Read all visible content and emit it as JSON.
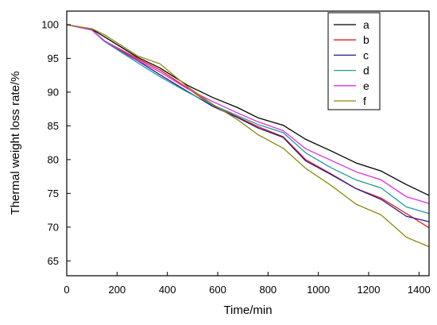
{
  "chart_data": {
    "type": "line",
    "xlabel": "Time/min",
    "ylabel": "Thermal weight loss rate/%",
    "xlim": [
      0,
      1440
    ],
    "ylim": [
      62.8,
      102
    ],
    "xticks": [
      0,
      200,
      400,
      600,
      800,
      1000,
      1200,
      1400
    ],
    "yticks": [
      65,
      70,
      75,
      80,
      85,
      90,
      95,
      100
    ],
    "grid": false,
    "legend": "top-right",
    "x": [
      0,
      100,
      150,
      280,
      370,
      480,
      580,
      680,
      760,
      860,
      950,
      1050,
      1150,
      1250,
      1350,
      1440
    ],
    "series": [
      {
        "name": "a",
        "color": "#000000",
        "values": [
          100,
          99.3,
          98.2,
          95.2,
          93.6,
          91.0,
          89.2,
          87.7,
          86.2,
          85.1,
          83.0,
          81.3,
          79.5,
          78.3,
          76.3,
          74.7
        ]
      },
      {
        "name": "b",
        "color": "#e31e1e",
        "values": [
          100,
          99.2,
          97.6,
          95.0,
          93.3,
          90.6,
          88.0,
          86.3,
          84.9,
          83.4,
          80.0,
          77.9,
          75.7,
          74.3,
          72.0,
          69.9
        ]
      },
      {
        "name": "c",
        "color": "#1f1f8f",
        "values": [
          100,
          99.2,
          97.5,
          94.7,
          92.6,
          90.1,
          87.9,
          86.2,
          84.7,
          83.3,
          79.8,
          77.8,
          75.7,
          74.1,
          71.6,
          70.8
        ]
      },
      {
        "name": "d",
        "color": "#1f9a9a",
        "values": [
          100,
          99.2,
          97.5,
          94.4,
          92.3,
          90.0,
          88.1,
          86.5,
          85.2,
          84.0,
          81.0,
          78.8,
          77.0,
          75.8,
          73.0,
          72.0
        ]
      },
      {
        "name": "e",
        "color": "#e02de0",
        "values": [
          100,
          99.2,
          97.6,
          94.8,
          93.0,
          90.5,
          88.6,
          86.9,
          85.6,
          84.3,
          81.6,
          79.9,
          78.2,
          77.0,
          74.5,
          73.5
        ]
      },
      {
        "name": "f",
        "color": "#8b8b12",
        "values": [
          100,
          99.4,
          98.5,
          95.4,
          94.2,
          90.8,
          88.2,
          85.9,
          83.7,
          81.7,
          78.7,
          76.2,
          73.4,
          71.8,
          68.5,
          67.1
        ]
      }
    ]
  }
}
